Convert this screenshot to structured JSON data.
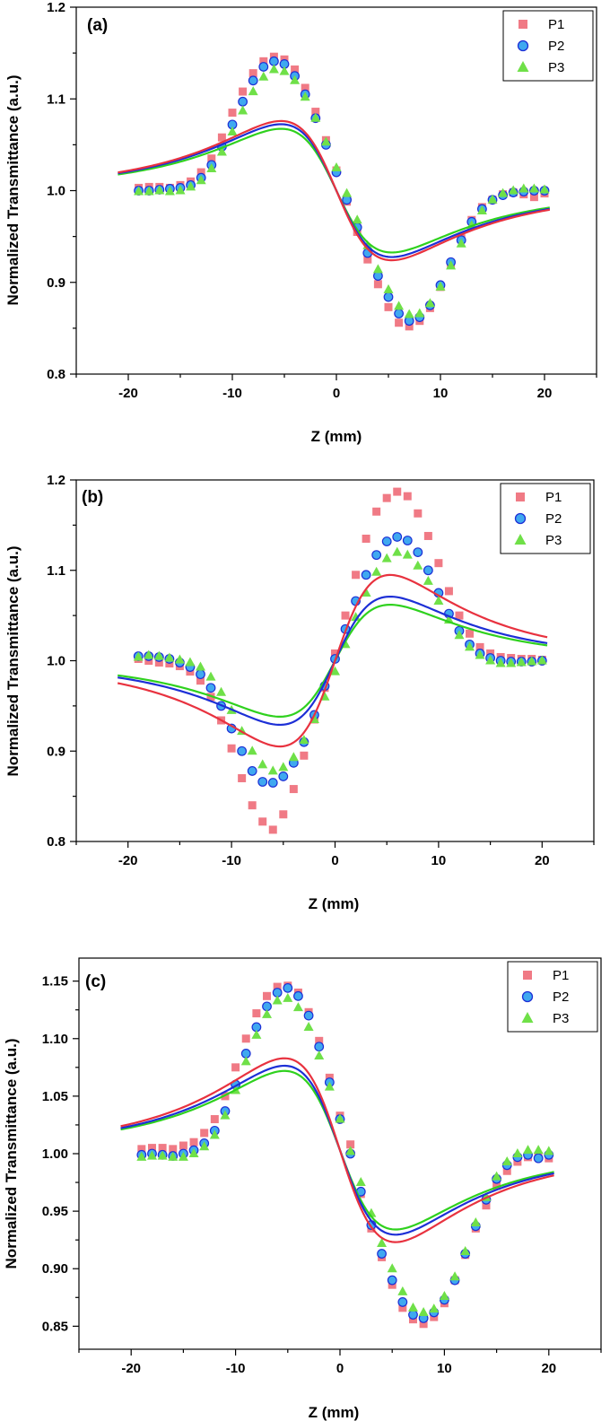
{
  "colors": {
    "P1": "#e8323f",
    "P2": "#1d2fd6",
    "P3": "#2fd11e",
    "P1_marker": "#f07a85",
    "P2_marker": "#3fa8f0",
    "P3_marker": "#6fe048"
  },
  "chart_data": [
    {
      "type": "scatter",
      "panel_label": "(a)",
      "xlabel": "Z (mm)",
      "ylabel": "Normalized Transmittance (a.u.)",
      "xlim": [
        -25,
        25
      ],
      "ylim": [
        0.8,
        1.2
      ],
      "xticks": [
        -20,
        -10,
        0,
        10,
        20
      ],
      "yticks": [
        0.8,
        0.9,
        1.0,
        1.1,
        1.2
      ],
      "ytick_labels": [
        "0.8",
        "0.9",
        "1.0",
        "1.1",
        "1.2"
      ],
      "legend_position": "top-right",
      "series": [
        {
          "name": "P1",
          "marker": "square",
          "fit_amplitude": 0.152,
          "fit_offset": 0.0,
          "x": [
            -19,
            -18,
            -17,
            -16,
            -15,
            -14,
            -13,
            -12,
            -11,
            -10,
            -9,
            -8,
            -7,
            -6,
            -5,
            -4,
            -3,
            -2,
            -1,
            0,
            1,
            2,
            3,
            4,
            5,
            6,
            7,
            8,
            9,
            10,
            11,
            12,
            13,
            14,
            15,
            16,
            17,
            18,
            19,
            20
          ],
          "y": [
            1.003,
            1.004,
            1.004,
            1.003,
            1.006,
            1.01,
            1.02,
            1.035,
            1.058,
            1.085,
            1.108,
            1.128,
            1.141,
            1.146,
            1.143,
            1.132,
            1.112,
            1.086,
            1.055,
            1.022,
            0.988,
            0.955,
            0.925,
            0.898,
            0.873,
            0.856,
            0.852,
            0.858,
            0.872,
            0.895,
            0.92,
            0.948,
            0.968,
            0.982,
            0.99,
            0.996,
            0.998,
            0.996,
            0.993,
            0.997
          ]
        },
        {
          "name": "P2",
          "marker": "circle",
          "fit_amplitude": 0.145,
          "fit_offset": 0.0,
          "x": [
            -19,
            -18,
            -17,
            -16,
            -15,
            -14,
            -13,
            -12,
            -11,
            -10,
            -9,
            -8,
            -7,
            -6,
            -5,
            -4,
            -3,
            -2,
            -1,
            0,
            1,
            2,
            3,
            4,
            5,
            6,
            7,
            8,
            9,
            10,
            11,
            12,
            13,
            14,
            15,
            16,
            17,
            18,
            19,
            20
          ],
          "y": [
            1.0,
            1.0,
            1.001,
            1.002,
            1.003,
            1.006,
            1.014,
            1.028,
            1.048,
            1.072,
            1.097,
            1.12,
            1.135,
            1.141,
            1.138,
            1.125,
            1.105,
            1.079,
            1.05,
            1.02,
            0.99,
            0.96,
            0.932,
            0.907,
            0.884,
            0.866,
            0.858,
            0.862,
            0.875,
            0.897,
            0.922,
            0.946,
            0.966,
            0.98,
            0.99,
            0.995,
            0.998,
            0.999,
            1.0,
            1.0
          ]
        },
        {
          "name": "P3",
          "marker": "triangle",
          "fit_amplitude": 0.135,
          "fit_offset": 0.0,
          "x": [
            -19,
            -18,
            -17,
            -16,
            -15,
            -14,
            -13,
            -12,
            -11,
            -10,
            -9,
            -8,
            -7,
            -6,
            -5,
            -4,
            -3,
            -2,
            -1,
            0,
            1,
            2,
            3,
            4,
            5,
            6,
            7,
            8,
            9,
            10,
            11,
            12,
            13,
            14,
            15,
            16,
            17,
            18,
            19,
            20
          ],
          "y": [
            0.999,
            0.999,
            1.0,
            0.999,
            1.0,
            1.004,
            1.011,
            1.024,
            1.042,
            1.064,
            1.087,
            1.108,
            1.124,
            1.132,
            1.13,
            1.12,
            1.102,
            1.079,
            1.053,
            1.025,
            0.997,
            0.968,
            0.94,
            0.914,
            0.892,
            0.874,
            0.865,
            0.866,
            0.877,
            0.895,
            0.918,
            0.942,
            0.962,
            0.978,
            0.99,
            0.997,
            1.0,
            1.002,
            1.002,
            1.001
          ]
        }
      ]
    },
    {
      "type": "scatter",
      "panel_label": "(b)",
      "xlabel": "Z (mm)",
      "ylabel": "Normalized Transmittance (a.u.)",
      "xlim": [
        -25,
        25
      ],
      "ylim": [
        0.8,
        1.2
      ],
      "xticks": [
        -20,
        -10,
        0,
        10,
        20
      ],
      "yticks": [
        0.8,
        0.9,
        1.0,
        1.1,
        1.2
      ],
      "ytick_labels": [
        "0.8",
        "0.9",
        "1.0",
        "1.1",
        "1.2"
      ],
      "legend_position": "top-right",
      "series": [
        {
          "name": "P1",
          "marker": "square",
          "fit_amplitude": -0.19,
          "fit_offset": 0.0,
          "x": [
            -19,
            -18,
            -17,
            -16,
            -15,
            -14,
            -13,
            -12,
            -11,
            -10,
            -9,
            -8,
            -7,
            -6,
            -5,
            -4,
            -3,
            -2,
            -1,
            0,
            1,
            2,
            3,
            4,
            5,
            6,
            7,
            8,
            9,
            10,
            11,
            12,
            13,
            14,
            15,
            16,
            17,
            18,
            19,
            20
          ],
          "y": [
            1.002,
            1.0,
            0.998,
            0.997,
            0.994,
            0.988,
            0.978,
            0.96,
            0.934,
            0.903,
            0.87,
            0.84,
            0.822,
            0.813,
            0.83,
            0.858,
            0.895,
            0.935,
            0.97,
            1.008,
            1.05,
            1.095,
            1.135,
            1.165,
            1.18,
            1.187,
            1.182,
            1.163,
            1.138,
            1.108,
            1.077,
            1.05,
            1.03,
            1.015,
            1.008,
            1.004,
            1.003,
            1.002,
            1.002,
            1.001
          ]
        },
        {
          "name": "P2",
          "marker": "circle",
          "fit_amplitude": -0.142,
          "fit_offset": 0.0,
          "x": [
            -19,
            -18,
            -17,
            -16,
            -15,
            -14,
            -13,
            -12,
            -11,
            -10,
            -9,
            -8,
            -7,
            -6,
            -5,
            -4,
            -3,
            -2,
            -1,
            0,
            1,
            2,
            3,
            4,
            5,
            6,
            7,
            8,
            9,
            10,
            11,
            12,
            13,
            14,
            15,
            16,
            17,
            18,
            19,
            20
          ],
          "y": [
            1.005,
            1.005,
            1.004,
            1.002,
            0.998,
            0.993,
            0.985,
            0.97,
            0.95,
            0.925,
            0.9,
            0.878,
            0.866,
            0.865,
            0.872,
            0.887,
            0.91,
            0.94,
            0.972,
            1.002,
            1.035,
            1.066,
            1.095,
            1.117,
            1.132,
            1.137,
            1.133,
            1.12,
            1.1,
            1.075,
            1.052,
            1.033,
            1.018,
            1.008,
            1.003,
            1.0,
            0.999,
            0.999,
            0.999,
            1.0
          ]
        },
        {
          "name": "P3",
          "marker": "triangle",
          "fit_amplitude": -0.124,
          "fit_offset": 0.0,
          "x": [
            -19,
            -18,
            -17,
            -16,
            -15,
            -14,
            -13,
            -12,
            -11,
            -10,
            -9,
            -8,
            -7,
            -6,
            -5,
            -4,
            -3,
            -2,
            -1,
            0,
            1,
            2,
            3,
            4,
            5,
            6,
            7,
            8,
            9,
            10,
            11,
            12,
            13,
            14,
            15,
            16,
            17,
            18,
            19,
            20
          ],
          "y": [
            1.004,
            1.006,
            1.005,
            1.003,
            1.001,
            0.998,
            0.993,
            0.982,
            0.965,
            0.945,
            0.922,
            0.9,
            0.885,
            0.878,
            0.882,
            0.893,
            0.912,
            0.935,
            0.96,
            0.988,
            1.018,
            1.048,
            1.075,
            1.098,
            1.113,
            1.12,
            1.117,
            1.105,
            1.088,
            1.066,
            1.045,
            1.028,
            1.015,
            1.006,
            1.0,
            0.997,
            0.997,
            0.998,
            0.999,
            1.0
          ]
        }
      ]
    },
    {
      "type": "scatter",
      "panel_label": "(c)",
      "xlabel": "Z (mm)",
      "ylabel": "Normalized Transmittance (a.u.)",
      "xlim": [
        -25,
        25
      ],
      "ylim": [
        0.83,
        1.17
      ],
      "xticks": [
        -20,
        -10,
        0,
        10,
        20
      ],
      "yticks": [
        0.85,
        0.9,
        0.95,
        1.0,
        1.05,
        1.1,
        1.15
      ],
      "ytick_labels": [
        "0.85",
        "0.90",
        "0.95",
        "1.00",
        "1.05",
        "1.10",
        "1.15"
      ],
      "legend_position": "top-right",
      "series": [
        {
          "name": "P1",
          "marker": "square",
          "fit_amplitude": 0.16,
          "fit_offset": 0.003,
          "x": [
            -19,
            -18,
            -17,
            -16,
            -15,
            -14,
            -13,
            -12,
            -11,
            -10,
            -9,
            -8,
            -7,
            -6,
            -5,
            -4,
            -3,
            -2,
            -1,
            0,
            1,
            2,
            3,
            4,
            5,
            6,
            7,
            8,
            9,
            10,
            11,
            12,
            13,
            14,
            15,
            16,
            17,
            18,
            19,
            20
          ],
          "y": [
            1.004,
            1.005,
            1.005,
            1.004,
            1.007,
            1.01,
            1.018,
            1.03,
            1.05,
            1.075,
            1.1,
            1.122,
            1.137,
            1.145,
            1.146,
            1.14,
            1.123,
            1.098,
            1.066,
            1.033,
            1.008,
            0.965,
            0.935,
            0.91,
            0.886,
            0.866,
            0.856,
            0.852,
            0.858,
            0.87,
            0.89,
            0.912,
            0.935,
            0.955,
            0.972,
            0.985,
            0.993,
            0.997,
            0.998,
            0.996
          ]
        },
        {
          "name": "P2",
          "marker": "circle",
          "fit_amplitude": 0.147,
          "fit_offset": 0.003,
          "x": [
            -19,
            -18,
            -17,
            -16,
            -15,
            -14,
            -13,
            -12,
            -11,
            -10,
            -9,
            -8,
            -7,
            -6,
            -5,
            -4,
            -3,
            -2,
            -1,
            0,
            1,
            2,
            3,
            4,
            5,
            6,
            7,
            8,
            9,
            10,
            11,
            12,
            13,
            14,
            15,
            16,
            17,
            18,
            19,
            20
          ],
          "y": [
            0.999,
            1.0,
            0.999,
            0.998,
            1.0,
            1.003,
            1.009,
            1.02,
            1.037,
            1.06,
            1.087,
            1.11,
            1.128,
            1.14,
            1.144,
            1.137,
            1.12,
            1.093,
            1.062,
            1.03,
            1.0,
            0.967,
            0.938,
            0.913,
            0.89,
            0.871,
            0.86,
            0.857,
            0.862,
            0.873,
            0.89,
            0.913,
            0.937,
            0.96,
            0.978,
            0.99,
            0.997,
            0.999,
            0.996,
            0.999
          ]
        },
        {
          "name": "P3",
          "marker": "triangle",
          "fit_amplitude": 0.138,
          "fit_offset": 0.003,
          "x": [
            -19,
            -18,
            -17,
            -16,
            -15,
            -14,
            -13,
            -12,
            -11,
            -10,
            -9,
            -8,
            -7,
            -6,
            -5,
            -4,
            -3,
            -2,
            -1,
            0,
            1,
            2,
            3,
            4,
            5,
            6,
            7,
            8,
            9,
            10,
            11,
            12,
            13,
            14,
            15,
            16,
            17,
            18,
            19,
            20
          ],
          "y": [
            0.997,
            0.998,
            0.998,
            0.997,
            0.997,
            1.0,
            1.006,
            1.016,
            1.033,
            1.055,
            1.08,
            1.103,
            1.121,
            1.133,
            1.135,
            1.127,
            1.11,
            1.085,
            1.058,
            1.03,
            1.002,
            0.975,
            0.948,
            0.922,
            0.9,
            0.88,
            0.866,
            0.862,
            0.865,
            0.876,
            0.893,
            0.915,
            0.94,
            0.962,
            0.98,
            0.993,
            1.0,
            1.003,
            1.003,
            1.002
          ]
        }
      ]
    }
  ]
}
